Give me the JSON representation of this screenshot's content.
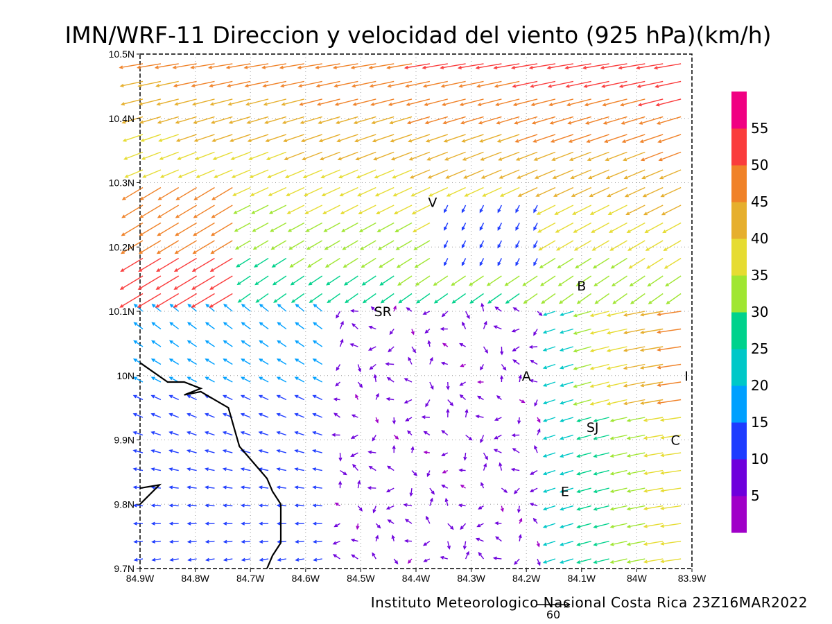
{
  "title": "IMN/WRF-11 Direccion y velocidad del viento (925 hPa)(km/h)",
  "credit": "Instituto Meteorologico Nacional Costa Rica 23Z16MAR2022",
  "map": {
    "lon_range": [
      -84.9,
      -83.9
    ],
    "lat_range": [
      9.7,
      10.5
    ],
    "grid": true,
    "x_ticks": [
      "84.9W",
      "84.8W",
      "84.7W",
      "84.6W",
      "84.5W",
      "84.4W",
      "84.3W",
      "84.2W",
      "84.1W",
      "84W",
      "83.9W"
    ],
    "y_ticks": [
      "10.5N",
      "10.4N",
      "10.3N",
      "10.2N",
      "10.1N",
      "10N",
      "9.9N",
      "9.8N",
      "9.7N"
    ],
    "reference_vector": {
      "label": "60",
      "speed": 60
    },
    "places": [
      {
        "label": "V",
        "lon": -84.37,
        "lat": 10.27
      },
      {
        "label": "B",
        "lon": -84.1,
        "lat": 10.14
      },
      {
        "label": "SR",
        "lon": -84.46,
        "lat": 10.1
      },
      {
        "label": "A",
        "lon": -84.2,
        "lat": 10.0
      },
      {
        "label": "I",
        "lon": -83.91,
        "lat": 10.0
      },
      {
        "label": "SJ",
        "lon": -84.08,
        "lat": 9.92
      },
      {
        "label": "C",
        "lon": -83.93,
        "lat": 9.9
      },
      {
        "label": "E",
        "lon": -84.13,
        "lat": 9.82
      }
    ],
    "coastline": [
      [
        -84.9,
        10.02
      ],
      [
        -84.85,
        9.99
      ],
      [
        -84.82,
        9.99
      ],
      [
        -84.79,
        9.98
      ],
      [
        -84.82,
        9.97
      ],
      [
        -84.79,
        9.975
      ],
      [
        -84.76,
        9.96
      ],
      [
        -84.74,
        9.95
      ],
      [
        -84.73,
        9.92
      ],
      [
        -84.72,
        9.89
      ],
      [
        -84.71,
        9.88
      ],
      [
        -84.69,
        9.86
      ],
      [
        -84.67,
        9.84
      ],
      [
        -84.66,
        9.82
      ],
      [
        -84.645,
        9.8
      ],
      [
        -84.645,
        9.77
      ],
      [
        -84.645,
        9.74
      ],
      [
        -84.66,
        9.72
      ],
      [
        -84.67,
        9.7
      ]
    ],
    "coastline_2": [
      [
        -84.9,
        9.825
      ],
      [
        -84.865,
        9.83
      ],
      [
        -84.9,
        9.8
      ]
    ]
  },
  "colorbar": {
    "labels": [
      "5",
      "10",
      "15",
      "20",
      "25",
      "30",
      "35",
      "40",
      "45",
      "50",
      "55"
    ],
    "colors": [
      "#a000c8",
      "#6e00dc",
      "#1e3cff",
      "#00a0ff",
      "#00c8c8",
      "#00d28c",
      "#a0e632",
      "#e6dc32",
      "#e6af2d",
      "#f08228",
      "#fa3c3c",
      "#f00082"
    ]
  },
  "chart_data": {
    "type": "wind-vector-map",
    "level": "925 hPa",
    "units": "km/h",
    "valid_time": "23Z16MAR2022",
    "speed_bins": [
      0,
      5,
      10,
      15,
      20,
      25,
      30,
      35,
      40,
      45,
      50,
      55,
      60
    ],
    "flow_regimes": [
      {
        "region": "north / upper half",
        "direction": "from NE toward SW",
        "speed_kmh": [
          25,
          48
        ]
      },
      {
        "region": "northwest corner",
        "direction": "from NE toward SW",
        "speed_kmh": [
          45,
          58
        ]
      },
      {
        "region": "southern valley (central Costa Rica)",
        "direction": "light, variable (mostly westward)",
        "speed_kmh": [
          3,
          12
        ]
      },
      {
        "region": "southwest near coast",
        "direction": "toward NW / W",
        "speed_kmh": [
          10,
          20
        ]
      },
      {
        "region": "east around SJ and C",
        "direction": "from E/NE toward W/SW",
        "speed_kmh": [
          18,
          45
        ]
      }
    ]
  }
}
